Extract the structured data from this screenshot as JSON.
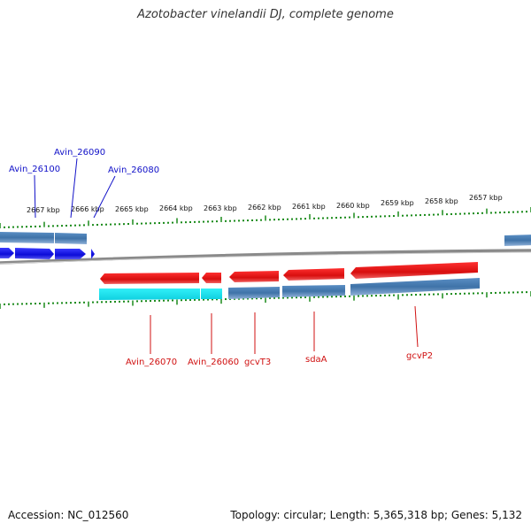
{
  "title": "Azotobacter vinelandii DJ, complete genome",
  "footer": {
    "accession": "Accession: NC_012560",
    "summary": "Topology: circular; Length: 5,365,318 bp; Genes: 5,132"
  },
  "colors": {
    "forward_cds": "#1414e6",
    "reverse_cds": "#e01414",
    "forward_gene_bar": "#4a80b8",
    "reverse_gene_bar": "#4a80b8",
    "rna_bar": "#22e6f0",
    "tick": "#1a8a1a",
    "backbone": "#8a8a8a"
  },
  "scale_labels": [
    "2667 kbp",
    "2666 kbp",
    "2665 kbp",
    "2664 kbp",
    "2663 kbp",
    "2662 kbp",
    "2661 kbp",
    "2660 kbp",
    "2659 kbp",
    "2658 kbp",
    "2657 kbp"
  ],
  "forward_genes": [
    "Avin_26100",
    "Avin_26090",
    "Avin_26080"
  ],
  "reverse_genes": [
    "Avin_26070",
    "Avin_26060",
    "gcvT3",
    "sdaA",
    "gcvP2"
  ]
}
